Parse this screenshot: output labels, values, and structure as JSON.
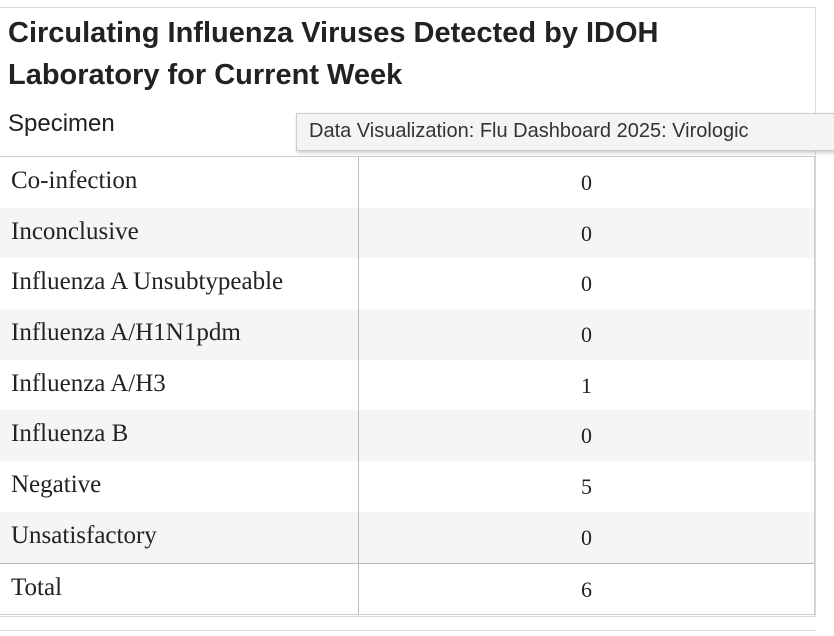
{
  "header": {
    "title": "Circulating Influenza Viruses Detected by IDOH Laboratory for Current Week",
    "column": "Specimen"
  },
  "tooltip": "Data Visualization: Flu Dashboard 2025: Virologic",
  "table": {
    "rows": [
      [
        "Co-infection",
        0
      ],
      [
        "Inconclusive",
        0
      ],
      [
        "Influenza A Unsubtypeable",
        0
      ],
      [
        "Influenza A/H1N1pdm",
        0
      ],
      [
        "Influenza A/H3",
        1
      ],
      [
        "Influenza B",
        0
      ],
      [
        "Negative",
        5
      ],
      [
        "Unsatisfactory",
        0
      ]
    ],
    "total": [
      "Total",
      6
    ]
  }
}
